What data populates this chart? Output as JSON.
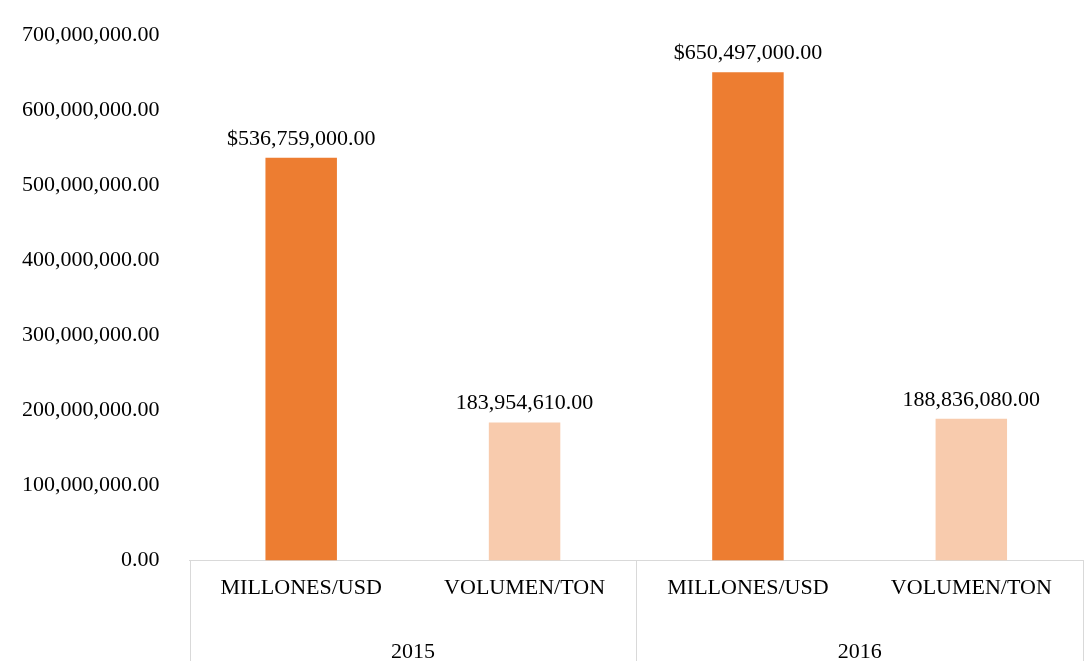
{
  "chart_data": {
    "type": "bar",
    "categories": [
      "MILLONES/USD",
      "VOLUMEN/TON",
      "MILLONES/USD",
      "VOLUMEN/TON"
    ],
    "values": [
      536759000,
      183954610,
      650497000,
      188836080
    ],
    "colors": [
      "#ed7d31",
      "#f8cbad",
      "#ed7d31",
      "#f8cbad"
    ],
    "value_labels": [
      "$536,759,000.00",
      "183,954,610.00",
      "$650,497,000.00",
      "188,836,080.00"
    ],
    "ylim": [
      0,
      700000000
    ],
    "yticks": [
      {
        "value": 0,
        "label": "0.00"
      },
      {
        "value": 100000000,
        "label": "100,000,000.00"
      },
      {
        "value": 200000000,
        "label": "200,000,000.00"
      },
      {
        "value": 300000000,
        "label": "300,000,000.00"
      },
      {
        "value": 400000000,
        "label": "400,000,000.00"
      },
      {
        "value": 500000000,
        "label": "500,000,000.00"
      },
      {
        "value": 600000000,
        "label": "600,000,000.00"
      },
      {
        "value": 700000000,
        "label": "700,000,000.00"
      }
    ],
    "grid": false,
    "legend": false,
    "annotations": [
      "2015",
      "2016"
    ]
  }
}
